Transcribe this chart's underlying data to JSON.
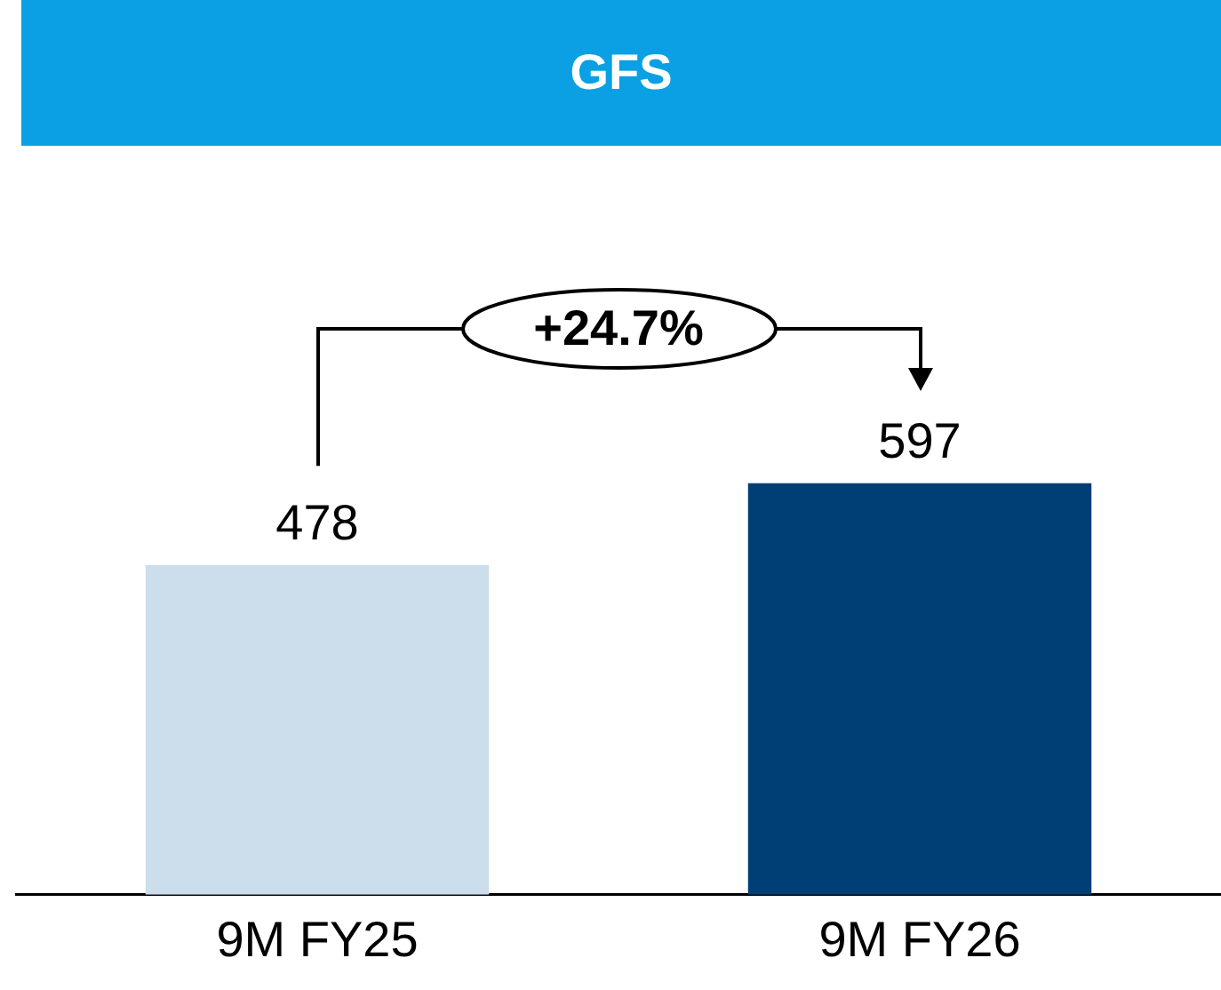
{
  "chart_data": {
    "type": "bar",
    "title": "GFS",
    "categories": [
      "9M FY25",
      "9M FY26"
    ],
    "values": [
      478,
      597
    ],
    "colors": [
      "#ccddec",
      "#003f76"
    ],
    "data_labels": true,
    "annotations": [
      "+24.7%"
    ]
  }
}
